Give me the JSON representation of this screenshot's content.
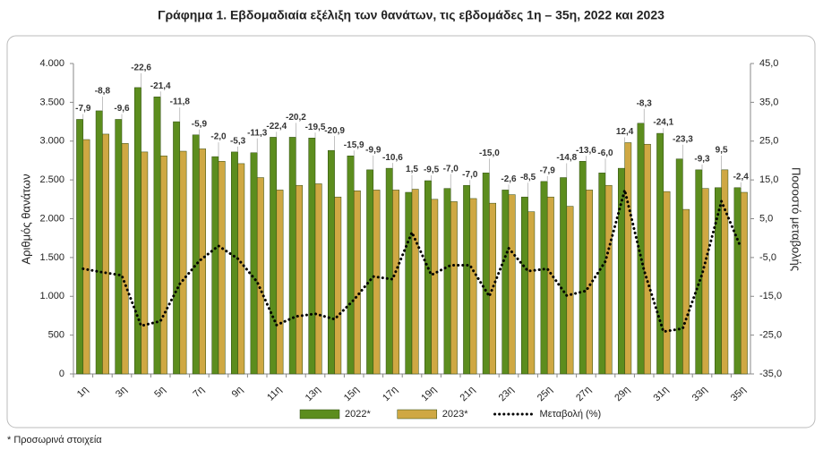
{
  "chart_data": {
    "type": "bar",
    "title": "Γράφημα 1.  Εβδομαδιαία εξέλιξη των θανάτων, τις εβδομάδες 1η – 35η, 2022 και 2023",
    "ylabel": "Αριθμός θανάτων",
    "y2label": "Ποσοστό μεταβολής",
    "footnote": "* Προσωρινά στοιχεία",
    "categories": [
      "1η",
      null,
      "3η",
      null,
      "5η",
      null,
      "7η",
      null,
      "9η",
      null,
      "11η",
      null,
      "13η",
      null,
      "15η",
      null,
      "17η",
      null,
      "19η",
      null,
      "21η",
      null,
      "23η",
      null,
      "25η",
      null,
      "27η",
      null,
      "29η",
      null,
      "31η",
      null,
      "33η",
      null,
      "35η"
    ],
    "series": [
      {
        "name": "2022*",
        "color": "#5c8d1e",
        "values": [
          3280,
          3390,
          3280,
          3690,
          3570,
          3250,
          3080,
          2800,
          2860,
          2850,
          3050,
          3050,
          3040,
          2880,
          2810,
          2630,
          2650,
          2340,
          2490,
          2390,
          2430,
          2590,
          2370,
          2280,
          2480,
          2530,
          2740,
          2590,
          2650,
          3230,
          3100,
          2770,
          2630,
          2400,
          2400
        ]
      },
      {
        "name": "2023*",
        "color": "#cfa843",
        "values": [
          3020,
          3090,
          2970,
          2860,
          2810,
          2870,
          2900,
          2740,
          2710,
          2530,
          2370,
          2430,
          2450,
          2280,
          2360,
          2370,
          2370,
          2380,
          2250,
          2220,
          2260,
          2200,
          2310,
          2090,
          2280,
          2160,
          2370,
          2430,
          2980,
          2960,
          2350,
          2120,
          2390,
          2630,
          2340
        ]
      },
      {
        "name": "Μεταβολή (%)",
        "type": "line",
        "axis": "y2",
        "color": "#000000",
        "values": [
          -7.9,
          -8.8,
          -9.6,
          -22.6,
          -21.4,
          -11.8,
          -5.9,
          -2.0,
          -5.3,
          -11.3,
          -22.4,
          -20.2,
          -19.5,
          -20.9,
          -15.9,
          -9.9,
          -10.6,
          1.5,
          -9.5,
          -7.0,
          -7.0,
          -15.0,
          -2.6,
          -8.5,
          -7.9,
          -14.8,
          -13.6,
          -6.0,
          12.4,
          -8.3,
          -24.1,
          -23.3,
          -9.3,
          9.5,
          -2.4
        ],
        "value_labels": [
          "-7,9",
          "-8,8",
          "-9,6",
          "-22,6",
          "-21,4",
          "-11,8",
          "-5,9",
          "-2,0",
          "-5,3",
          "-11,3",
          "-22,4",
          "-20,2",
          "-19,5",
          "-20,9",
          "-15,9",
          "-9,9",
          "-10,6",
          "1,5",
          "-9,5",
          "-7,0",
          "-7,0",
          "-15,0",
          "-2,6",
          "-8,5",
          "-7,9",
          "-14,8",
          "-13,6",
          "-6,0",
          "12,4",
          "-8,3",
          "-24,1",
          "-23,3",
          "-9,3",
          "9,5",
          "-2,4"
        ]
      }
    ],
    "ylim": [
      0,
      4000
    ],
    "yticks": [
      0,
      500,
      {
        "value": 1000,
        "label": "1.000"
      },
      {
        "value": 1500,
        "label": "1.500"
      },
      {
        "value": 2000,
        "label": "2.000"
      },
      {
        "value": 2500,
        "label": "2.500"
      },
      {
        "value": 3000,
        "label": "3.000"
      },
      {
        "value": 3500,
        "label": "3.500"
      },
      {
        "value": 4000,
        "label": "4.000"
      }
    ],
    "y2lim": [
      -35,
      45
    ],
    "y2ticks": [
      {
        "value": -35,
        "label": "-35,0"
      },
      {
        "value": -25,
        "label": "-25,0"
      },
      {
        "value": -15,
        "label": "-15,0"
      },
      {
        "value": -5,
        "label": "-5,0"
      },
      {
        "value": 5,
        "label": "5,0"
      },
      {
        "value": 15,
        "label": "15,0"
      },
      {
        "value": 25,
        "label": "25,0"
      },
      {
        "value": 35,
        "label": "35,0"
      },
      {
        "value": 45,
        "label": "45,0"
      }
    ],
    "grid": false,
    "legend": "bottom"
  }
}
